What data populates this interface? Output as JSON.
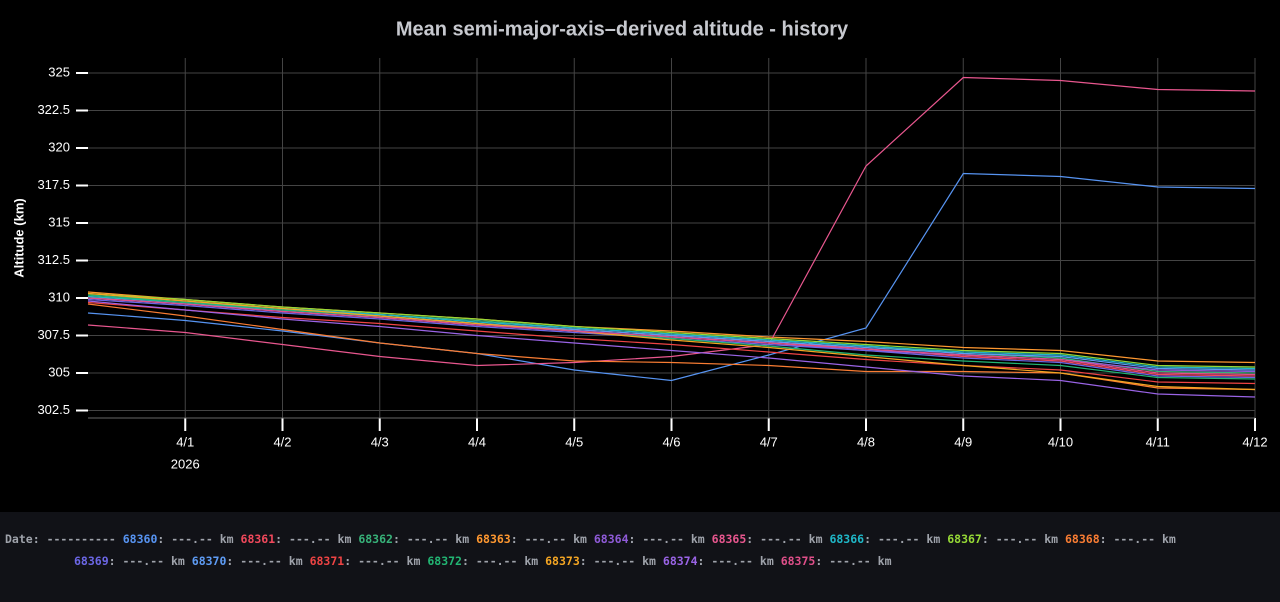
{
  "chart_data": {
    "type": "line",
    "title": "Mean semi-major-axis–derived altitude - history",
    "y_label": "Altitude (km)",
    "x": [
      "2026-03-31",
      "2026-04-01",
      "2026-04-02",
      "2026-04-03",
      "2026-04-04",
      "2026-04-05",
      "2026-04-06",
      "2026-04-07",
      "2026-04-08",
      "2026-04-09",
      "2026-04-10",
      "2026-04-11",
      "2026-04-12"
    ],
    "xlim": [
      "2026-03-31",
      "2026-04-12"
    ],
    "xticks": [
      {
        "value": "2026-04-01",
        "label": "4/1"
      },
      {
        "value": "2026-04-02",
        "label": "4/2"
      },
      {
        "value": "2026-04-03",
        "label": "4/3"
      },
      {
        "value": "2026-04-04",
        "label": "4/4"
      },
      {
        "value": "2026-04-05",
        "label": "4/5"
      },
      {
        "value": "2026-04-06",
        "label": "4/6"
      },
      {
        "value": "2026-04-07",
        "label": "4/7"
      },
      {
        "value": "2026-04-08",
        "label": "4/8"
      },
      {
        "value": "2026-04-09",
        "label": "4/9"
      },
      {
        "value": "2026-04-10",
        "label": "4/10"
      },
      {
        "value": "2026-04-11",
        "label": "4/11"
      },
      {
        "value": "2026-04-12",
        "label": "4/12"
      }
    ],
    "x_year_label": "2026",
    "ylim": [
      302,
      326
    ],
    "yticks": [
      302.5,
      305,
      307.5,
      310,
      312.5,
      315,
      317.5,
      320,
      322.5,
      325
    ],
    "grid": true,
    "legend": {
      "label": "Date:",
      "date_placeholder": "----------",
      "separator": ":",
      "value_placeholder": "---.--",
      "unit": "km"
    },
    "series": [
      {
        "name": "68360",
        "color": "#5794f2",
        "values": [
          309.0,
          308.5,
          307.8,
          307.0,
          306.3,
          305.2,
          304.5,
          306.2,
          308.0,
          318.3,
          318.1,
          317.4,
          317.3
        ]
      },
      {
        "name": "68361",
        "color": "#f2495c",
        "values": [
          310.1,
          309.7,
          309.2,
          308.8,
          308.3,
          307.9,
          307.5,
          307.1,
          306.6,
          306.1,
          305.8,
          304.9,
          304.8
        ]
      },
      {
        "name": "68362",
        "color": "#37b279",
        "values": [
          310.2,
          309.8,
          309.3,
          308.9,
          308.5,
          308.0,
          307.6,
          307.2,
          306.8,
          306.3,
          306.0,
          305.1,
          305.0
        ]
      },
      {
        "name": "68363",
        "color": "#ff9830",
        "values": [
          310.4,
          309.9,
          309.4,
          309.0,
          308.6,
          308.1,
          307.8,
          307.4,
          307.1,
          306.7,
          306.5,
          305.8,
          305.7
        ]
      },
      {
        "name": "68364",
        "color": "#8f5bd8",
        "values": [
          310.0,
          309.6,
          309.1,
          308.7,
          308.2,
          307.8,
          307.4,
          307.0,
          306.5,
          306.2,
          305.9,
          305.2,
          305.1
        ]
      },
      {
        "name": "68365",
        "color": "#e9578f",
        "values": [
          308.2,
          307.7,
          306.9,
          306.1,
          305.5,
          305.7,
          306.1,
          306.9,
          318.8,
          324.7,
          324.5,
          323.9,
          323.8
        ]
      },
      {
        "name": "68366",
        "color": "#1fb8c8",
        "values": [
          310.1,
          309.7,
          309.3,
          308.9,
          308.4,
          308.0,
          307.6,
          307.2,
          306.8,
          306.4,
          306.2,
          305.4,
          305.3
        ]
      },
      {
        "name": "68367",
        "color": "#96d936",
        "values": [
          310.3,
          309.9,
          309.4,
          309.0,
          308.6,
          308.1,
          307.7,
          307.3,
          306.9,
          306.5,
          306.3,
          305.5,
          305.4
        ]
      },
      {
        "name": "68368",
        "color": "#fa7d33",
        "values": [
          309.6,
          308.8,
          307.9,
          307.0,
          306.3,
          305.8,
          305.7,
          305.5,
          305.1,
          305.1,
          305.0,
          304.0,
          303.9
        ]
      },
      {
        "name": "68369",
        "color": "#6c67e6",
        "values": [
          309.9,
          309.5,
          309.0,
          308.6,
          308.1,
          307.7,
          307.3,
          306.9,
          306.5,
          306.0,
          305.7,
          304.8,
          304.7
        ]
      },
      {
        "name": "68370",
        "color": "#5e9cf5",
        "values": [
          310.0,
          309.6,
          309.2,
          308.8,
          308.3,
          307.9,
          307.5,
          307.1,
          306.7,
          306.3,
          306.1,
          305.3,
          305.2
        ]
      },
      {
        "name": "68371",
        "color": "#ef4444",
        "values": [
          309.7,
          309.2,
          308.7,
          308.3,
          307.8,
          307.3,
          306.9,
          306.4,
          305.9,
          305.5,
          305.2,
          304.4,
          304.3
        ]
      },
      {
        "name": "68372",
        "color": "#22b573",
        "values": [
          310.2,
          309.7,
          309.2,
          308.8,
          308.3,
          307.8,
          307.3,
          306.8,
          306.2,
          305.8,
          305.5,
          304.7,
          304.6
        ]
      },
      {
        "name": "68373",
        "color": "#f5a623",
        "values": [
          310.3,
          309.8,
          309.3,
          308.8,
          308.3,
          307.8,
          307.2,
          306.7,
          306.1,
          305.5,
          305.0,
          304.1,
          303.9
        ]
      },
      {
        "name": "68374",
        "color": "#9a64e6",
        "values": [
          309.8,
          309.2,
          308.6,
          308.1,
          307.5,
          307.0,
          306.5,
          306.0,
          305.4,
          304.8,
          304.5,
          303.6,
          303.4
        ]
      },
      {
        "name": "68375",
        "color": "#e04f8a",
        "values": [
          310.0,
          309.6,
          309.1,
          308.7,
          308.2,
          307.8,
          307.4,
          307.0,
          306.6,
          306.2,
          305.9,
          305.0,
          304.9
        ]
      }
    ]
  }
}
